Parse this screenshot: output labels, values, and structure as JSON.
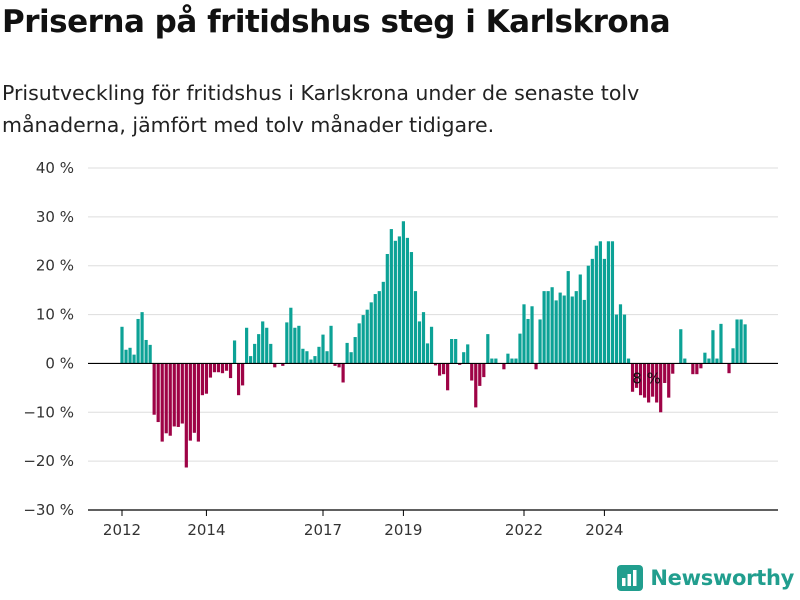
{
  "title": "Priserna på fritidshus steg i Karlskrona",
  "subtitle": "Prisutveckling för fritidshus i Karlskrona under de senaste tolv månaderna, jämfört med tolv månader tidigare.",
  "brand": {
    "name": "Newsworthy",
    "icon": "bar-chart-logo-icon",
    "color": "#219e8e"
  },
  "colors": {
    "positive": "#0ca296",
    "negative": "#9e0346",
    "axis": "#000000",
    "grid": "#dddddd"
  },
  "chart_data": {
    "type": "bar",
    "ylim": [
      -30,
      40
    ],
    "grid": true,
    "y_ticks": [
      40,
      30,
      20,
      10,
      0,
      -10,
      -20,
      -30
    ],
    "y_tick_labels": [
      "40 %",
      "30 %",
      "20 %",
      "10 %",
      "0 %",
      "−10 %",
      "−20 %",
      "−30 %"
    ],
    "x_ticks": [
      "2012",
      "2014",
      "2017",
      "2019",
      "2022",
      "2024"
    ],
    "x_tick_index": [
      0,
      21,
      50,
      70,
      100,
      120
    ],
    "annotation": {
      "text": "8 %",
      "index": 130
    },
    "values": [
      7.5,
      2.8,
      3.2,
      1.8,
      9.1,
      10.5,
      4.8,
      3.8,
      -10.5,
      -12,
      -16,
      -14.3,
      -14.8,
      -12.9,
      -13,
      -12.3,
      -21.3,
      -15.8,
      -14.2,
      -16,
      -6.5,
      -6.2,
      -2.9,
      -1.8,
      -1.8,
      -2,
      -1.5,
      -3,
      4.7,
      -6.5,
      -4.5,
      7.3,
      1.5,
      4,
      6,
      8.6,
      7.3,
      4,
      -0.8,
      0,
      -0.5,
      8.4,
      11.4,
      7.3,
      7.7,
      3,
      2.5,
      0.8,
      1.5,
      3.4,
      5.9,
      2.5,
      7.7,
      -0.5,
      -0.8,
      -3.9,
      4.2,
      2.3,
      5.4,
      8.2,
      9.9,
      11,
      12.5,
      14.2,
      14.8,
      16.7,
      22.4,
      27.5,
      25.1,
      26,
      29.1,
      25.7,
      22.8,
      14.8,
      8.6,
      10.5,
      4.1,
      7.5,
      -0.4,
      -2.5,
      -2.2,
      -5.5,
      5,
      5,
      -0.3,
      2.3,
      3.9,
      -3.5,
      -9,
      -4.6,
      -2.8,
      6,
      1,
      1,
      0,
      -1.2,
      2,
      1,
      1,
      6.1,
      12.1,
      9.1,
      11.7,
      -1.2,
      9,
      14.8,
      14.8,
      15.6,
      12.9,
      14.5,
      13.9,
      18.9,
      13.7,
      14.8,
      18.2,
      13,
      20,
      21.4,
      24.1,
      25,
      21.4,
      25,
      25,
      10,
      12.1,
      10,
      1,
      -5.8,
      -5,
      -6.5,
      -7,
      -8,
      -6.8,
      -8,
      -10,
      -4,
      -7,
      -2.1,
      0,
      7,
      1,
      0,
      -2.2,
      -2.2,
      -1,
      2.2,
      1,
      6.8,
      1,
      8.1,
      0,
      -2,
      3.1,
      9,
      9,
      8
    ]
  }
}
